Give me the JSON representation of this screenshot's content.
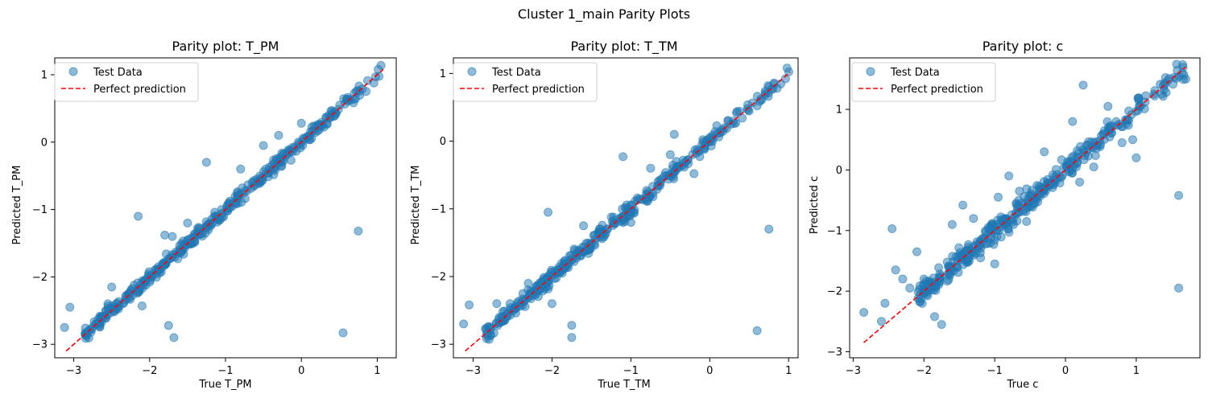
{
  "figure": {
    "suptitle": "Cluster 1_main Parity Plots"
  },
  "colors": {
    "points": "#1f77b4",
    "reference_line": "#ff0000",
    "axes": "#000000"
  },
  "chart_data": [
    {
      "type": "scatter",
      "title": "Parity plot: T_PM",
      "xlabel": "True T_PM",
      "ylabel": "Predicted T_PM",
      "xlim": [
        -3.25,
        1.25
      ],
      "ylim": [
        -3.2,
        1.25
      ],
      "xticks": [
        -3,
        -2,
        -1,
        0,
        1
      ],
      "yticks": [
        -3,
        -2,
        -1,
        0,
        1
      ],
      "grid": false,
      "legend": {
        "position": "upper-left",
        "entries": [
          "Test Data",
          "Perfect prediction"
        ]
      },
      "reference_line": {
        "x": [
          -3.1,
          1.08
        ],
        "y": [
          -3.1,
          1.08
        ]
      },
      "outliers": [
        {
          "x": -3.12,
          "y": -2.75
        },
        {
          "x": -3.05,
          "y": -2.45
        },
        {
          "x": -2.15,
          "y": -1.1
        },
        {
          "x": -2.1,
          "y": -2.43
        },
        {
          "x": -1.25,
          "y": -0.3
        },
        {
          "x": -1.75,
          "y": -2.72
        },
        {
          "x": -1.68,
          "y": -2.9
        },
        {
          "x": 0.55,
          "y": -2.83
        },
        {
          "x": 0.75,
          "y": -1.32
        },
        {
          "x": -0.8,
          "y": -0.4
        },
        {
          "x": -0.3,
          "y": 0.1
        },
        {
          "x": -1.5,
          "y": -1.2
        },
        {
          "x": -1.8,
          "y": -1.38
        },
        {
          "x": -0.5,
          "y": -0.05
        },
        {
          "x": 0.0,
          "y": 0.28
        },
        {
          "x": -1.7,
          "y": -1.4
        },
        {
          "x": -2.5,
          "y": -2.15
        },
        {
          "x": -2.55,
          "y": -2.4
        }
      ],
      "dense_band": {
        "x_start": -2.85,
        "x_end": 1.08,
        "spread": 0.05,
        "count": 380
      }
    },
    {
      "type": "scatter",
      "title": "Parity plot: T_TM",
      "xlabel": "True T_TM",
      "ylabel": "Predicted T_TM",
      "xlim": [
        -3.25,
        1.12
      ],
      "ylim": [
        -3.2,
        1.23
      ],
      "xticks": [
        -3,
        -2,
        -1,
        0,
        1
      ],
      "yticks": [
        -3,
        -2,
        -1,
        0,
        1
      ],
      "grid": false,
      "legend": {
        "position": "upper-left",
        "entries": [
          "Test Data",
          "Perfect prediction"
        ]
      },
      "reference_line": {
        "x": [
          -3.1,
          1.02
        ],
        "y": [
          -3.1,
          1.02
        ]
      },
      "outliers": [
        {
          "x": -3.12,
          "y": -2.7
        },
        {
          "x": -3.05,
          "y": -2.42
        },
        {
          "x": -2.05,
          "y": -1.05
        },
        {
          "x": -2.0,
          "y": -2.4
        },
        {
          "x": -1.1,
          "y": -0.23
        },
        {
          "x": -1.75,
          "y": -2.72
        },
        {
          "x": -1.75,
          "y": -2.9
        },
        {
          "x": 0.6,
          "y": -2.8
        },
        {
          "x": 0.75,
          "y": -1.3
        },
        {
          "x": -0.45,
          "y": 0.1
        },
        {
          "x": -0.5,
          "y": -0.2
        },
        {
          "x": -0.2,
          "y": -0.48
        },
        {
          "x": -0.75,
          "y": -0.4
        },
        {
          "x": -1.6,
          "y": -1.25
        },
        {
          "x": -1.4,
          "y": -1.3
        },
        {
          "x": -1.0,
          "y": -1.2
        },
        {
          "x": -2.3,
          "y": -2.1
        },
        {
          "x": -2.7,
          "y": -2.4
        },
        {
          "x": 0.98,
          "y": 1.08
        }
      ],
      "dense_band": {
        "x_start": -2.85,
        "x_end": 1.02,
        "spread": 0.05,
        "count": 380
      }
    },
    {
      "type": "scatter",
      "title": "Parity plot: c",
      "xlabel": "True c",
      "ylabel": "Predicted c",
      "xlim": [
        -3.05,
        1.9
      ],
      "ylim": [
        -3.1,
        1.85
      ],
      "xticks": [
        -3,
        -2,
        -1,
        0,
        1
      ],
      "yticks": [
        -3,
        -2,
        -1,
        0,
        1
      ],
      "grid": false,
      "legend": {
        "position": "upper-left",
        "entries": [
          "Test Data",
          "Perfect prediction"
        ]
      },
      "reference_line": {
        "x": [
          -2.85,
          1.7
        ],
        "y": [
          -2.85,
          1.7
        ]
      },
      "outliers": [
        {
          "x": -2.45,
          "y": -0.97
        },
        {
          "x": -2.85,
          "y": -2.35
        },
        {
          "x": -2.6,
          "y": -2.5
        },
        {
          "x": -2.55,
          "y": -2.2
        },
        {
          "x": -2.4,
          "y": -1.65
        },
        {
          "x": -2.3,
          "y": -1.8
        },
        {
          "x": -2.2,
          "y": -1.95
        },
        {
          "x": -2.1,
          "y": -1.35
        },
        {
          "x": -1.85,
          "y": -2.42
        },
        {
          "x": -1.75,
          "y": -2.55
        },
        {
          "x": -1.45,
          "y": -0.58
        },
        {
          "x": -1.2,
          "y": -1.45
        },
        {
          "x": -1.0,
          "y": -1.55
        },
        {
          "x": -0.95,
          "y": -0.45
        },
        {
          "x": -0.8,
          "y": -0.1
        },
        {
          "x": -0.65,
          "y": -0.35
        },
        {
          "x": -0.55,
          "y": -0.85
        },
        {
          "x": 0.1,
          "y": 0.8
        },
        {
          "x": 0.25,
          "y": 1.4
        },
        {
          "x": 0.2,
          "y": -0.2
        },
        {
          "x": 0.8,
          "y": 0.45
        },
        {
          "x": 0.95,
          "y": 0.5
        },
        {
          "x": 1.0,
          "y": 0.2
        },
        {
          "x": 1.6,
          "y": -0.42
        },
        {
          "x": 1.6,
          "y": -1.95
        },
        {
          "x": 1.65,
          "y": 1.6
        },
        {
          "x": 1.7,
          "y": 1.5
        },
        {
          "x": -1.6,
          "y": -0.9
        },
        {
          "x": -1.3,
          "y": -0.8
        },
        {
          "x": 0.6,
          "y": 1.05
        },
        {
          "x": -2.0,
          "y": -1.8
        },
        {
          "x": -0.3,
          "y": 0.3
        },
        {
          "x": 0.4,
          "y": 0.05
        }
      ],
      "dense_band": {
        "x_start": -2.1,
        "x_end": 1.7,
        "spread": 0.09,
        "count": 360
      }
    }
  ]
}
